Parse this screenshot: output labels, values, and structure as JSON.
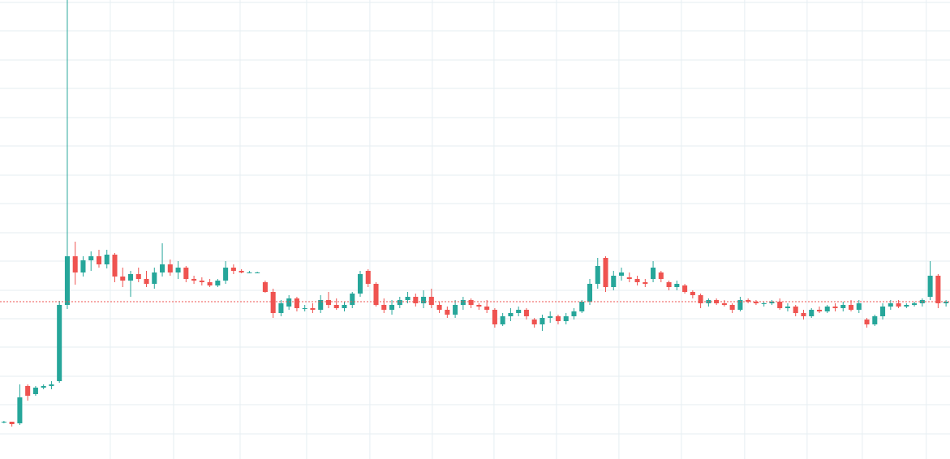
{
  "chart_data": {
    "type": "candlestick",
    "open": [
      46,
      46,
      44,
      90,
      80,
      88,
      90,
      96,
      190,
      250,
      230,
      245,
      250,
      240,
      252,
      225,
      220,
      228,
      222,
      216,
      230,
      240,
      230,
      236,
      222,
      220,
      218,
      214,
      220,
      236,
      232,
      230,
      230,
      218,
      206,
      180,
      188,
      198,
      186,
      186,
      184,
      196,
      190,
      186,
      190,
      204,
      232,
      216,
      190,
      184,
      190,
      196,
      200,
      192,
      200,
      190,
      184,
      178,
      190,
      196,
      190,
      188,
      184,
      166,
      176,
      180,
      184,
      172,
      166,
      174,
      176,
      170,
      176,
      182,
      194,
      216,
      248,
      212,
      226,
      224,
      222,
      218,
      222,
      230,
      218,
      212,
      214,
      206,
      202,
      192,
      196,
      192,
      190,
      184,
      196,
      194,
      192,
      192,
      194,
      186,
      188,
      180,
      176,
      184,
      182,
      188,
      186,
      190,
      184,
      172,
      166,
      176,
      188,
      192,
      188,
      190,
      192,
      200,
      226,
      192
    ],
    "high": [
      47,
      46,
      92,
      92,
      90,
      92,
      96,
      195,
      566,
      268,
      250,
      256,
      258,
      258,
      254,
      236,
      232,
      236,
      232,
      236,
      266,
      246,
      244,
      238,
      226,
      224,
      222,
      222,
      244,
      240,
      234,
      232,
      231,
      220,
      210,
      196,
      202,
      200,
      190,
      192,
      202,
      206,
      198,
      194,
      206,
      232,
      234,
      218,
      198,
      196,
      200,
      206,
      204,
      208,
      210,
      194,
      188,
      196,
      200,
      198,
      192,
      196,
      186,
      180,
      186,
      188,
      186,
      174,
      178,
      182,
      178,
      180,
      186,
      196,
      222,
      248,
      250,
      232,
      236,
      230,
      226,
      222,
      244,
      232,
      220,
      220,
      216,
      208,
      204,
      198,
      198,
      196,
      192,
      200,
      198,
      196,
      194,
      196,
      198,
      192,
      190,
      184,
      186,
      188,
      190,
      192,
      194,
      196,
      196,
      174,
      178,
      192,
      196,
      196,
      192,
      194,
      198,
      244,
      228,
      196
    ],
    "low": [
      44,
      40,
      42,
      72,
      78,
      86,
      86,
      94,
      185,
      215,
      225,
      232,
      236,
      235,
      218,
      212,
      200,
      218,
      212,
      210,
      225,
      226,
      222,
      218,
      216,
      214,
      212,
      212,
      216,
      228,
      229,
      229,
      229,
      205,
      174,
      176,
      184,
      182,
      182,
      180,
      180,
      186,
      184,
      182,
      186,
      200,
      212,
      188,
      180,
      178,
      186,
      192,
      188,
      186,
      186,
      180,
      174,
      174,
      184,
      186,
      184,
      180,
      162,
      164,
      170,
      176,
      172,
      162,
      158,
      168,
      166,
      166,
      172,
      180,
      190,
      210,
      206,
      208,
      220,
      218,
      214,
      212,
      218,
      218,
      208,
      208,
      204,
      198,
      186,
      188,
      190,
      188,
      180,
      182,
      192,
      190,
      188,
      190,
      184,
      182,
      176,
      172,
      174,
      180,
      180,
      182,
      182,
      182,
      180,
      162,
      164,
      172,
      184,
      186,
      186,
      188,
      188,
      196,
      186,
      188
    ],
    "close": [
      46,
      43,
      76,
      78,
      88,
      90,
      92,
      190,
      250,
      230,
      245,
      250,
      240,
      252,
      225,
      220,
      228,
      222,
      216,
      230,
      240,
      230,
      236,
      222,
      220,
      218,
      214,
      220,
      236,
      232,
      230,
      230,
      230,
      206,
      180,
      192,
      198,
      186,
      186,
      184,
      196,
      190,
      186,
      190,
      204,
      228,
      216,
      190,
      184,
      190,
      196,
      200,
      192,
      200,
      190,
      184,
      178,
      190,
      196,
      190,
      188,
      184,
      166,
      176,
      180,
      184,
      176,
      166,
      174,
      176,
      170,
      176,
      182,
      194,
      216,
      238,
      212,
      226,
      230,
      222,
      218,
      216,
      236,
      222,
      212,
      216,
      206,
      202,
      192,
      196,
      192,
      190,
      184,
      196,
      194,
      192,
      192,
      194,
      186,
      188,
      180,
      176,
      184,
      182,
      188,
      186,
      190,
      184,
      192,
      166,
      176,
      188,
      192,
      188,
      190,
      192,
      196,
      226,
      192,
      194
    ],
    "xlim": [
      -0.5,
      119.5
    ],
    "ylim": [
      0,
      566
    ],
    "x_grid": [
      13.43,
      21.43,
      29.83,
      38.23,
      46.22,
      54.11,
      61.9,
      69.79,
      77.68,
      85.57,
      93.56,
      101.45,
      108.42,
      116.5
    ],
    "y_grid": [
      563,
      528,
      492,
      457,
      421,
      386,
      350,
      315,
      279,
      244,
      208,
      173,
      138,
      102,
      67,
      31
    ],
    "price_line": 194,
    "up_color": "#26a69a",
    "down_color": "#ef5350",
    "grid_color": "#e6eef2",
    "price_line_color": "#ef5350"
  }
}
